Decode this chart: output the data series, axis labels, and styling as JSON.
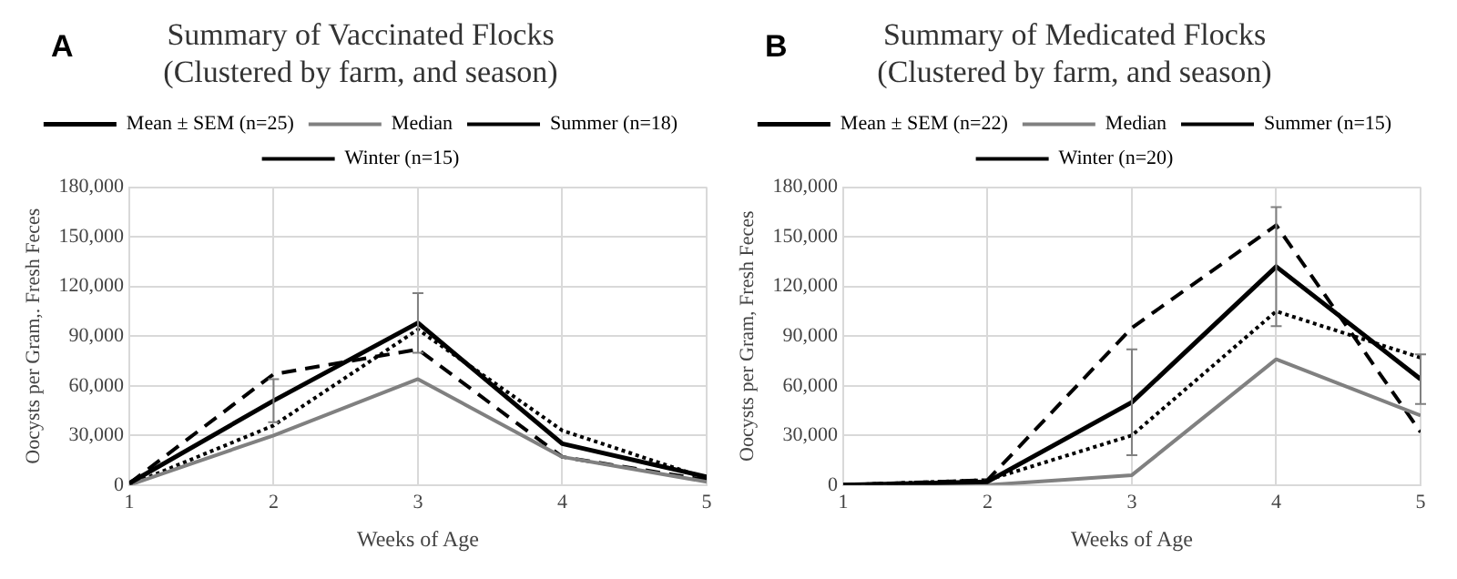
{
  "chart_data": [
    {
      "type": "line",
      "title": "Summary of Vaccinated Flocks\n(Clustered by farm, and season)",
      "xlabel": "Weeks of Age",
      "ylabel": "Oocysts per Gram,. Fresh Feces",
      "annotations": [
        "A"
      ],
      "x": [
        1,
        2,
        3,
        4,
        5
      ],
      "xlim": [
        1,
        5
      ],
      "xticks": [
        1,
        2,
        3,
        4,
        5
      ],
      "ylim": [
        0,
        180000
      ],
      "yticks": [
        {
          "value": 0,
          "label": "0"
        },
        {
          "value": 30000,
          "label": "30,000"
        },
        {
          "value": 60000,
          "label": "60,000"
        },
        {
          "value": 90000,
          "label": "90,000"
        },
        {
          "value": 120000,
          "label": "120,000"
        },
        {
          "value": 150000,
          "label": "150,000"
        },
        {
          "value": 180000,
          "label": "180,000"
        }
      ],
      "grid": true,
      "legend": "top",
      "marker": "none",
      "series": [
        {
          "name": "Mean ± SEM (n=25)",
          "color": "#000000",
          "line_style": "solid",
          "values": [
            1000,
            51000,
            98000,
            25000,
            5000
          ],
          "errors": [
            null,
            13000,
            18000,
            null,
            null
          ]
        },
        {
          "name": "Median",
          "color": "#808080",
          "line_style": "solid",
          "values": [
            0,
            30000,
            64000,
            17000,
            2000
          ]
        },
        {
          "name": "Summer (n=18)",
          "color": "#000000",
          "line_style": "dashed",
          "values": [
            1000,
            67000,
            82000,
            17000,
            3000
          ]
        },
        {
          "name": "Winter (n=15)",
          "color": "#000000",
          "line_style": "dotted",
          "values": [
            0,
            36000,
            94000,
            33000,
            4000
          ]
        }
      ]
    },
    {
      "type": "line",
      "title": "Summary of Medicated Flocks\n(Clustered by farm, and season)",
      "xlabel": "Weeks of Age",
      "ylabel": "Oocysts per Gram, Fresh Feces",
      "annotations": [
        "B"
      ],
      "x": [
        1,
        2,
        3,
        4,
        5
      ],
      "xlim": [
        1,
        5
      ],
      "xticks": [
        1,
        2,
        3,
        4,
        5
      ],
      "ylim": [
        0,
        180000
      ],
      "yticks": [
        {
          "value": 0,
          "label": "0"
        },
        {
          "value": 30000,
          "label": "30,000"
        },
        {
          "value": 60000,
          "label": "60,000"
        },
        {
          "value": 90000,
          "label": "90,000"
        },
        {
          "value": 120000,
          "label": "120,000"
        },
        {
          "value": 150000,
          "label": "150,000"
        },
        {
          "value": 180000,
          "label": "180,000"
        }
      ],
      "grid": true,
      "legend": "top",
      "marker": "none",
      "series": [
        {
          "name": "Mean ± SEM (n=22)",
          "color": "#000000",
          "line_style": "solid",
          "values": [
            0,
            2000,
            50000,
            132000,
            64000
          ],
          "errors": [
            null,
            null,
            32000,
            36000,
            15000
          ]
        },
        {
          "name": "Median",
          "color": "#808080",
          "line_style": "solid",
          "values": [
            0,
            0,
            6000,
            76000,
            42000
          ]
        },
        {
          "name": "Summer (n=15)",
          "color": "#000000",
          "line_style": "dashed",
          "values": [
            0,
            3000,
            95000,
            157000,
            32000
          ]
        },
        {
          "name": "Winter (n=20)",
          "color": "#000000",
          "line_style": "dotted",
          "values": [
            0,
            3000,
            30000,
            105000,
            77000
          ]
        }
      ]
    }
  ]
}
